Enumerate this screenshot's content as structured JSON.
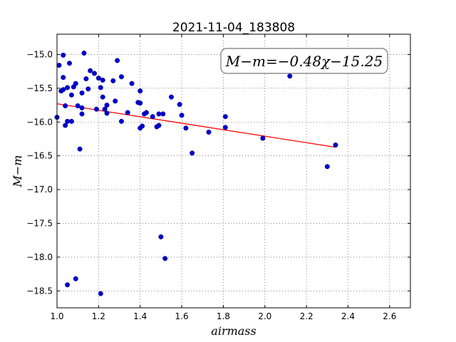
{
  "chart_data": {
    "type": "scatter",
    "title": "2021-11-04_183808",
    "xlabel": "airmass",
    "ylabel": "M−m",
    "annotation": "M−m=−0.48χ−15.25",
    "xlim": [
      1.0,
      2.7
    ],
    "ylim": [
      -14.7,
      -18.75
    ],
    "y_inverted": true,
    "x_ticks": [
      "1.0",
      "1.2",
      "1.4",
      "1.6",
      "1.8",
      "2.0",
      "2.2",
      "2.4",
      "2.6"
    ],
    "x_tick_values": [
      1.0,
      1.2,
      1.4,
      1.6,
      1.8,
      2.0,
      2.2,
      2.4,
      2.6
    ],
    "y_ticks": [
      "−15.0",
      "−15.5",
      "−16.0",
      "−16.5",
      "−17.0",
      "−17.5",
      "−18.0",
      "−18.5"
    ],
    "y_tick_values": [
      -15.0,
      -15.5,
      -16.0,
      -16.5,
      -17.0,
      -17.5,
      -18.0,
      -18.5
    ],
    "grid": true,
    "colors": {
      "points": "#0000cc",
      "fit_line": "#ff0000"
    },
    "fit": {
      "slope": -0.48,
      "intercept": -15.25,
      "x_range": [
        1.0,
        2.34
      ]
    },
    "points": [
      {
        "x": 1.0,
        "y": -15.93
      },
      {
        "x": 1.01,
        "y": -15.16
      },
      {
        "x": 1.02,
        "y": -15.54
      },
      {
        "x": 1.03,
        "y": -15.01
      },
      {
        "x": 1.03,
        "y": -15.34
      },
      {
        "x": 1.03,
        "y": -15.52
      },
      {
        "x": 1.04,
        "y": -15.76
      },
      {
        "x": 1.04,
        "y": -16.05
      },
      {
        "x": 1.05,
        "y": -15.49
      },
      {
        "x": 1.05,
        "y": -15.99
      },
      {
        "x": 1.05,
        "y": -18.41
      },
      {
        "x": 1.06,
        "y": -15.13
      },
      {
        "x": 1.07,
        "y": -15.6
      },
      {
        "x": 1.07,
        "y": -15.99
      },
      {
        "x": 1.08,
        "y": -15.48
      },
      {
        "x": 1.09,
        "y": -15.43
      },
      {
        "x": 1.09,
        "y": -18.32
      },
      {
        "x": 1.1,
        "y": -15.76
      },
      {
        "x": 1.11,
        "y": -16.4
      },
      {
        "x": 1.12,
        "y": -15.57
      },
      {
        "x": 1.12,
        "y": -15.79
      },
      {
        "x": 1.12,
        "y": -15.88
      },
      {
        "x": 1.13,
        "y": -14.98
      },
      {
        "x": 1.14,
        "y": -15.36
      },
      {
        "x": 1.15,
        "y": -15.51
      },
      {
        "x": 1.16,
        "y": -15.24
      },
      {
        "x": 1.18,
        "y": -15.28
      },
      {
        "x": 1.19,
        "y": -15.81
      },
      {
        "x": 1.2,
        "y": -15.35
      },
      {
        "x": 1.21,
        "y": -18.54
      },
      {
        "x": 1.21,
        "y": -15.49
      },
      {
        "x": 1.22,
        "y": -15.38
      },
      {
        "x": 1.22,
        "y": -15.63
      },
      {
        "x": 1.23,
        "y": -15.81
      },
      {
        "x": 1.24,
        "y": -15.75
      },
      {
        "x": 1.24,
        "y": -15.87
      },
      {
        "x": 1.27,
        "y": -15.39
      },
      {
        "x": 1.28,
        "y": -15.69
      },
      {
        "x": 1.29,
        "y": -15.09
      },
      {
        "x": 1.31,
        "y": -15.33
      },
      {
        "x": 1.31,
        "y": -15.99
      },
      {
        "x": 1.34,
        "y": -15.86
      },
      {
        "x": 1.36,
        "y": -15.43
      },
      {
        "x": 1.39,
        "y": -15.71
      },
      {
        "x": 1.4,
        "y": -15.54
      },
      {
        "x": 1.4,
        "y": -15.72
      },
      {
        "x": 1.4,
        "y": -16.09
      },
      {
        "x": 1.41,
        "y": -16.06
      },
      {
        "x": 1.42,
        "y": -15.88
      },
      {
        "x": 1.43,
        "y": -15.86
      },
      {
        "x": 1.46,
        "y": -15.92
      },
      {
        "x": 1.48,
        "y": -16.07
      },
      {
        "x": 1.49,
        "y": -16.05
      },
      {
        "x": 1.49,
        "y": -15.88
      },
      {
        "x": 1.5,
        "y": -17.7
      },
      {
        "x": 1.51,
        "y": -15.88
      },
      {
        "x": 1.52,
        "y": -18.02
      },
      {
        "x": 1.55,
        "y": -15.63
      },
      {
        "x": 1.59,
        "y": -15.74
      },
      {
        "x": 1.6,
        "y": -15.9
      },
      {
        "x": 1.62,
        "y": -16.09
      },
      {
        "x": 1.65,
        "y": -16.46
      },
      {
        "x": 1.73,
        "y": -16.15
      },
      {
        "x": 1.81,
        "y": -16.08
      },
      {
        "x": 1.81,
        "y": -15.92
      },
      {
        "x": 1.99,
        "y": -16.24
      },
      {
        "x": 2.12,
        "y": -15.32
      },
      {
        "x": 2.3,
        "y": -16.66
      },
      {
        "x": 2.34,
        "y": -16.34
      }
    ]
  }
}
